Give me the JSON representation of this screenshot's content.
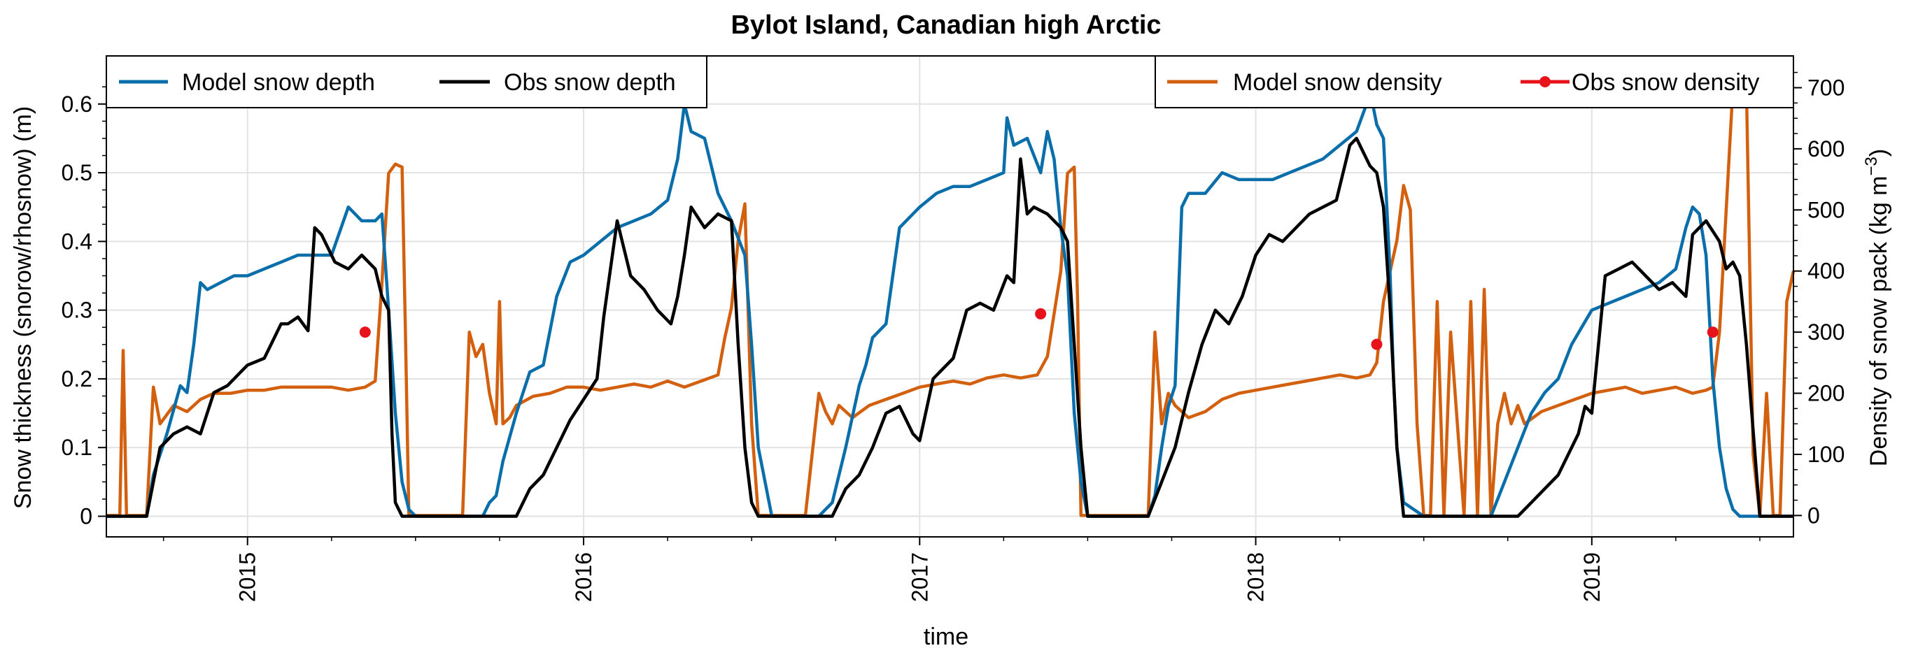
{
  "chart_data": {
    "type": "line",
    "title": "Bylot Island, Canadian high Arctic",
    "xlabel": "time",
    "ylabel_left": "Snow thickness (snorow/rhosnow) (m)",
    "ylabel_right_prefix": "Density of snow pack (kg m",
    "ylabel_right_sup": "−3",
    "ylabel_right_suffix": ")",
    "xlim": [
      2014.58,
      2019.6
    ],
    "ylim_left": [
      -0.03,
      0.67
    ],
    "ylim_right": [
      -35,
      752
    ],
    "x_ticks": [
      {
        "value": 2015,
        "label": "2015"
      },
      {
        "value": 2016,
        "label": "2016"
      },
      {
        "value": 2017,
        "label": "2017"
      },
      {
        "value": 2018,
        "label": "2018"
      },
      {
        "value": 2019,
        "label": "2019"
      }
    ],
    "y_left_ticks": [
      {
        "value": 0,
        "label": "0"
      },
      {
        "value": 0.1,
        "label": "0.1"
      },
      {
        "value": 0.2,
        "label": "0.2"
      },
      {
        "value": 0.3,
        "label": "0.3"
      },
      {
        "value": 0.4,
        "label": "0.4"
      },
      {
        "value": 0.5,
        "label": "0.5"
      },
      {
        "value": 0.6,
        "label": "0.6"
      }
    ],
    "y_right_ticks": [
      {
        "value": 0,
        "label": "0"
      },
      {
        "value": 100,
        "label": "100"
      },
      {
        "value": 200,
        "label": "200"
      },
      {
        "value": 300,
        "label": "300"
      },
      {
        "value": 400,
        "label": "400"
      },
      {
        "value": 500,
        "label": "500"
      },
      {
        "value": 600,
        "label": "600"
      },
      {
        "value": 700,
        "label": "700"
      }
    ],
    "grid": true,
    "legend_left": {
      "placement": "upper-left",
      "entries": [
        "Model snow depth",
        "Obs snow depth"
      ]
    },
    "legend_right": {
      "placement": "upper-right",
      "entries": [
        "Model snow density",
        "Obs snow density"
      ]
    },
    "series": [
      {
        "name": "Model snow depth",
        "axis": "left",
        "color": "#0a6eaa",
        "x": [
          2014.58,
          2014.7,
          2014.72,
          2014.76,
          2014.8,
          2014.82,
          2014.84,
          2014.86,
          2014.88,
          2014.92,
          2014.96,
          2015.0,
          2015.05,
          2015.1,
          2015.15,
          2015.2,
          2015.25,
          2015.3,
          2015.34,
          2015.38,
          2015.4,
          2015.42,
          2015.44,
          2015.46,
          2015.48,
          2015.5,
          2015.55,
          2015.7,
          2015.72,
          2015.74,
          2015.76,
          2015.8,
          2015.84,
          2015.88,
          2015.92,
          2015.96,
          2016.0,
          2016.05,
          2016.1,
          2016.15,
          2016.2,
          2016.25,
          2016.28,
          2016.3,
          2016.32,
          2016.36,
          2016.4,
          2016.44,
          2016.48,
          2016.5,
          2016.52,
          2016.56,
          2016.7,
          2016.74,
          2016.78,
          2016.82,
          2016.84,
          2016.86,
          2016.9,
          2016.94,
          2017.0,
          2017.05,
          2017.1,
          2017.15,
          2017.2,
          2017.25,
          2017.26,
          2017.28,
          2017.32,
          2017.36,
          2017.38,
          2017.4,
          2017.42,
          2017.44,
          2017.46,
          2017.48,
          2017.5,
          2017.55,
          2017.68,
          2017.7,
          2017.72,
          2017.74,
          2017.76,
          2017.78,
          2017.8,
          2017.85,
          2017.9,
          2017.95,
          2018.0,
          2018.05,
          2018.1,
          2018.15,
          2018.2,
          2018.25,
          2018.3,
          2018.33,
          2018.34,
          2018.36,
          2018.38,
          2018.4,
          2018.41,
          2018.42,
          2018.44,
          2018.5,
          2018.7,
          2018.74,
          2018.78,
          2018.82,
          2018.86,
          2018.9,
          2018.94,
          2019.0,
          2019.05,
          2019.1,
          2019.15,
          2019.2,
          2019.25,
          2019.28,
          2019.3,
          2019.32,
          2019.34,
          2019.36,
          2019.38,
          2019.4,
          2019.42,
          2019.44,
          2019.5,
          2019.6
        ],
        "values": [
          0.0,
          0.0,
          0.06,
          0.12,
          0.19,
          0.18,
          0.25,
          0.34,
          0.33,
          0.34,
          0.35,
          0.35,
          0.36,
          0.37,
          0.38,
          0.38,
          0.38,
          0.45,
          0.43,
          0.43,
          0.44,
          0.3,
          0.15,
          0.05,
          0.01,
          0.0,
          0.0,
          0.0,
          0.02,
          0.03,
          0.08,
          0.15,
          0.21,
          0.22,
          0.32,
          0.37,
          0.38,
          0.4,
          0.42,
          0.43,
          0.44,
          0.46,
          0.52,
          0.6,
          0.56,
          0.55,
          0.47,
          0.43,
          0.38,
          0.25,
          0.1,
          0.0,
          0.0,
          0.02,
          0.1,
          0.19,
          0.22,
          0.26,
          0.28,
          0.42,
          0.45,
          0.47,
          0.48,
          0.48,
          0.49,
          0.5,
          0.58,
          0.54,
          0.55,
          0.5,
          0.56,
          0.52,
          0.42,
          0.35,
          0.15,
          0.05,
          0.0,
          0.0,
          0.0,
          0.03,
          0.1,
          0.16,
          0.19,
          0.45,
          0.47,
          0.47,
          0.5,
          0.49,
          0.49,
          0.49,
          0.5,
          0.51,
          0.52,
          0.54,
          0.56,
          0.6,
          0.62,
          0.57,
          0.55,
          0.35,
          0.2,
          0.1,
          0.02,
          0.0,
          0.0,
          0.05,
          0.1,
          0.15,
          0.18,
          0.2,
          0.25,
          0.3,
          0.31,
          0.32,
          0.33,
          0.34,
          0.36,
          0.42,
          0.45,
          0.44,
          0.38,
          0.2,
          0.1,
          0.04,
          0.01,
          0.0,
          0.0,
          0.0
        ]
      },
      {
        "name": "Obs snow depth",
        "axis": "left",
        "color": "#000000",
        "x": [
          2014.58,
          2014.7,
          2014.72,
          2014.74,
          2014.78,
          2014.82,
          2014.86,
          2014.9,
          2014.94,
          2014.96,
          2014.98,
          2015.0,
          2015.05,
          2015.08,
          2015.1,
          2015.12,
          2015.15,
          2015.18,
          2015.2,
          2015.22,
          2015.24,
          2015.26,
          2015.3,
          2015.34,
          2015.38,
          2015.4,
          2015.42,
          2015.43,
          2015.44,
          2015.46,
          2015.5,
          2015.8,
          2015.84,
          2015.88,
          2015.92,
          2015.96,
          2016.0,
          2016.04,
          2016.06,
          2016.1,
          2016.14,
          2016.18,
          2016.22,
          2016.26,
          2016.28,
          2016.3,
          2016.32,
          2016.36,
          2016.4,
          2016.44,
          2016.46,
          2016.48,
          2016.5,
          2016.52,
          2016.56,
          2016.74,
          2016.78,
          2016.82,
          2016.86,
          2016.9,
          2016.94,
          2016.98,
          2017.0,
          2017.04,
          2017.06,
          2017.1,
          2017.14,
          2017.18,
          2017.22,
          2017.26,
          2017.28,
          2017.3,
          2017.32,
          2017.34,
          2017.38,
          2017.42,
          2017.44,
          2017.46,
          2017.48,
          2017.5,
          2017.55,
          2017.68,
          2017.72,
          2017.76,
          2017.8,
          2017.84,
          2017.88,
          2017.92,
          2017.96,
          2018.0,
          2018.04,
          2018.08,
          2018.12,
          2018.16,
          2018.2,
          2018.24,
          2018.28,
          2018.3,
          2018.32,
          2018.34,
          2018.36,
          2018.38,
          2018.4,
          2018.42,
          2018.44,
          2018.5,
          2018.78,
          2018.82,
          2018.86,
          2018.9,
          2018.94,
          2018.96,
          2018.98,
          2019.0,
          2019.04,
          2019.08,
          2019.12,
          2019.16,
          2019.2,
          2019.24,
          2019.28,
          2019.3,
          2019.34,
          2019.38,
          2019.4,
          2019.42,
          2019.44,
          2019.46,
          2019.5,
          2019.6
        ],
        "values": [
          0.0,
          0.0,
          0.05,
          0.1,
          0.12,
          0.13,
          0.12,
          0.18,
          0.19,
          0.2,
          0.21,
          0.22,
          0.23,
          0.26,
          0.28,
          0.28,
          0.29,
          0.27,
          0.42,
          0.41,
          0.39,
          0.37,
          0.36,
          0.38,
          0.36,
          0.32,
          0.3,
          0.12,
          0.02,
          0.0,
          0.0,
          0.0,
          0.04,
          0.06,
          0.1,
          0.14,
          0.17,
          0.2,
          0.29,
          0.43,
          0.35,
          0.33,
          0.3,
          0.28,
          0.32,
          0.38,
          0.45,
          0.42,
          0.44,
          0.43,
          0.25,
          0.1,
          0.02,
          0.0,
          0.0,
          0.0,
          0.04,
          0.06,
          0.1,
          0.15,
          0.16,
          0.12,
          0.11,
          0.2,
          0.21,
          0.23,
          0.3,
          0.31,
          0.3,
          0.35,
          0.34,
          0.52,
          0.44,
          0.45,
          0.44,
          0.42,
          0.4,
          0.25,
          0.1,
          0.0,
          0.0,
          0.0,
          0.05,
          0.1,
          0.18,
          0.25,
          0.3,
          0.28,
          0.32,
          0.38,
          0.41,
          0.4,
          0.42,
          0.44,
          0.45,
          0.46,
          0.54,
          0.55,
          0.53,
          0.51,
          0.5,
          0.45,
          0.3,
          0.1,
          0.0,
          0.0,
          0.0,
          0.02,
          0.04,
          0.06,
          0.1,
          0.12,
          0.16,
          0.15,
          0.35,
          0.36,
          0.37,
          0.35,
          0.33,
          0.34,
          0.32,
          0.41,
          0.43,
          0.4,
          0.36,
          0.37,
          0.35,
          0.25,
          0.0,
          0.0
        ]
      },
      {
        "name": "Model snow density",
        "axis": "right",
        "color": "#d2600f",
        "x": [
          2014.58,
          2014.62,
          2014.63,
          2014.64,
          2014.66,
          2014.68,
          2014.7,
          2014.72,
          2014.74,
          2014.78,
          2014.82,
          2014.86,
          2014.9,
          2014.95,
          2015.0,
          2015.05,
          2015.1,
          2015.15,
          2015.2,
          2015.25,
          2015.3,
          2015.35,
          2015.38,
          2015.4,
          2015.42,
          2015.44,
          2015.46,
          2015.47,
          2015.48,
          2015.5,
          2015.52,
          2015.64,
          2015.66,
          2015.68,
          2015.7,
          2015.72,
          2015.74,
          2015.75,
          2015.76,
          2015.78,
          2015.8,
          2015.85,
          2015.9,
          2015.95,
          2016.0,
          2016.05,
          2016.1,
          2016.15,
          2016.2,
          2016.25,
          2016.3,
          2016.35,
          2016.4,
          2016.42,
          2016.44,
          2016.46,
          2016.48,
          2016.5,
          2016.52,
          2016.66,
          2016.68,
          2016.7,
          2016.72,
          2016.74,
          2016.76,
          2016.8,
          2016.85,
          2016.9,
          2016.95,
          2017.0,
          2017.05,
          2017.1,
          2017.15,
          2017.2,
          2017.25,
          2017.3,
          2017.35,
          2017.38,
          2017.4,
          2017.42,
          2017.44,
          2017.46,
          2017.47,
          2017.48,
          2017.5,
          2017.52,
          2017.68,
          2017.7,
          2017.72,
          2017.74,
          2017.76,
          2017.8,
          2017.85,
          2017.9,
          2017.95,
          2018.0,
          2018.05,
          2018.1,
          2018.15,
          2018.2,
          2018.25,
          2018.3,
          2018.34,
          2018.36,
          2018.38,
          2018.4,
          2018.42,
          2018.44,
          2018.46,
          2018.48,
          2018.5,
          2018.52,
          2018.54,
          2018.56,
          2018.58,
          2018.62,
          2018.64,
          2018.66,
          2018.68,
          2018.7,
          2018.72,
          2018.74,
          2018.76,
          2018.78,
          2018.8,
          2018.85,
          2018.9,
          2018.95,
          2019.0,
          2019.05,
          2019.1,
          2019.15,
          2019.2,
          2019.25,
          2019.3,
          2019.34,
          2019.36,
          2019.38,
          2019.4,
          2019.42,
          2019.44,
          2019.46,
          2019.48,
          2019.5,
          2019.52,
          2019.54,
          2019.56,
          2019.58,
          2019.6
        ],
        "values": [
          0,
          0,
          270,
          0,
          0,
          0,
          0,
          210,
          150,
          180,
          170,
          190,
          200,
          200,
          205,
          205,
          210,
          210,
          210,
          210,
          205,
          210,
          220,
          380,
          560,
          575,
          570,
          300,
          0,
          0,
          0,
          0,
          300,
          260,
          280,
          200,
          150,
          350,
          150,
          160,
          180,
          195,
          200,
          210,
          210,
          205,
          210,
          215,
          210,
          220,
          210,
          220,
          230,
          290,
          340,
          450,
          510,
          150,
          0,
          0,
          100,
          200,
          170,
          150,
          180,
          160,
          180,
          190,
          200,
          210,
          215,
          220,
          215,
          225,
          230,
          225,
          230,
          260,
          330,
          400,
          560,
          570,
          350,
          0,
          0,
          0,
          0,
          300,
          150,
          200,
          180,
          160,
          170,
          190,
          200,
          205,
          210,
          215,
          220,
          225,
          230,
          225,
          230,
          250,
          350,
          400,
          450,
          540,
          500,
          150,
          0,
          0,
          350,
          0,
          300,
          0,
          350,
          0,
          370,
          0,
          150,
          200,
          150,
          180,
          150,
          170,
          180,
          190,
          200,
          205,
          210,
          200,
          205,
          210,
          200,
          205,
          210,
          300,
          500,
          700,
          750,
          700,
          100,
          0,
          200,
          0,
          0,
          350,
          400
        ]
      }
    ],
    "scatter": {
      "name": "Obs snow density",
      "axis": "right",
      "color": "#e8121b",
      "points": [
        {
          "x": 2015.35,
          "y": 300
        },
        {
          "x": 2017.36,
          "y": 330
        },
        {
          "x": 2018.36,
          "y": 280
        },
        {
          "x": 2019.36,
          "y": 300
        }
      ]
    }
  }
}
